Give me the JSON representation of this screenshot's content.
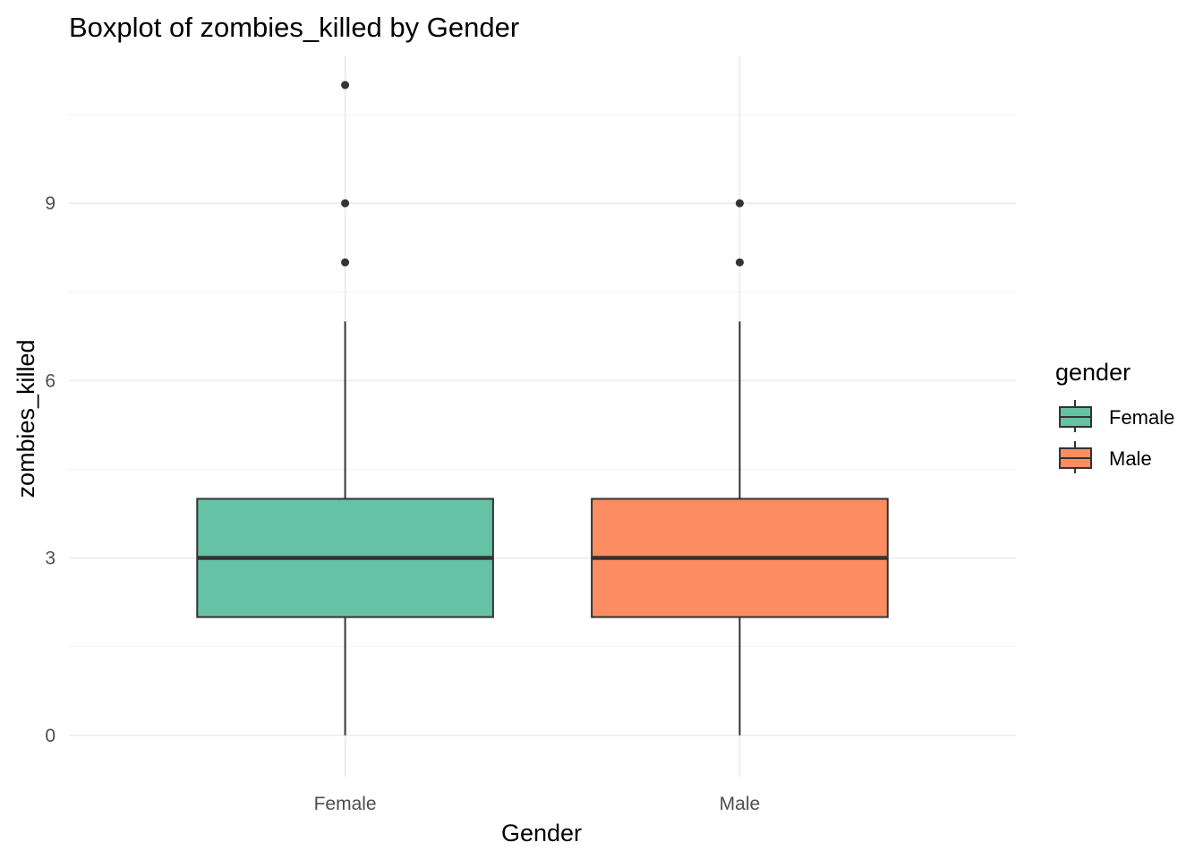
{
  "chart_data": {
    "type": "boxplot",
    "title": "Boxplot of zombies_killed by Gender",
    "xlabel": "Gender",
    "ylabel": "zombies_killed",
    "categories": [
      "Female",
      "Male"
    ],
    "ylim": [
      -0.7,
      11.5
    ],
    "yticks": [
      0,
      3,
      6,
      9
    ],
    "yticks_labels": [
      "0",
      "3",
      "6",
      "9"
    ],
    "grid": true,
    "legend": {
      "title": "gender",
      "position": "right",
      "entries": [
        "Female",
        "Male"
      ]
    },
    "series": [
      {
        "name": "Female",
        "color": "#66c2a5",
        "whisker_low": 0,
        "q1": 2,
        "median": 3,
        "q3": 4,
        "whisker_high": 7,
        "outliers": [
          8,
          9,
          11
        ]
      },
      {
        "name": "Male",
        "color": "#fc8d62",
        "whisker_low": 0,
        "q1": 2,
        "median": 3,
        "q3": 4,
        "whisker_high": 7,
        "outliers": [
          8,
          9
        ]
      }
    ]
  }
}
